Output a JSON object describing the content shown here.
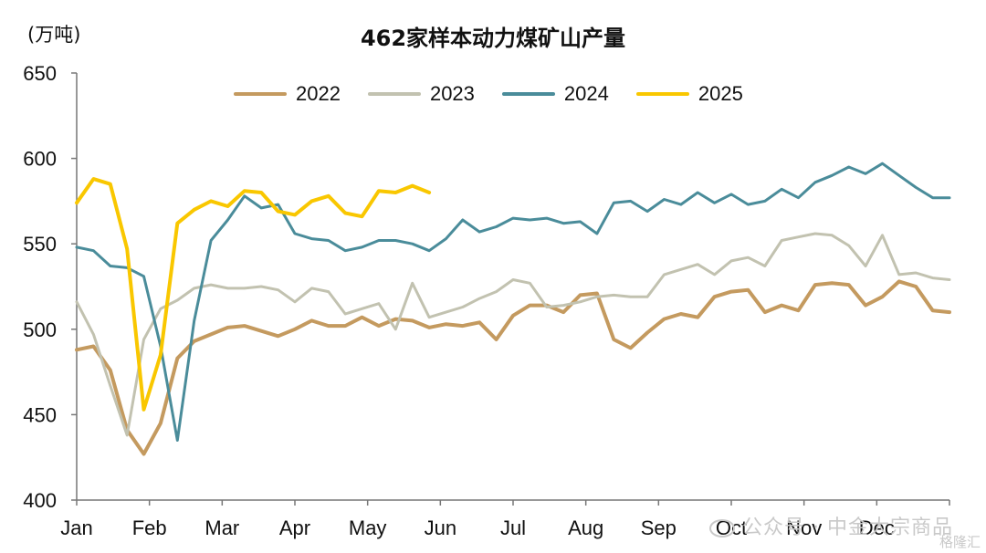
{
  "chart_data": {
    "type": "line",
    "title": "462家样本动力煤矿山产量",
    "unit_label": "(万吨)",
    "ylim": [
      400,
      650
    ],
    "yticks": [
      400,
      450,
      500,
      550,
      600,
      650
    ],
    "months": [
      "Jan",
      "Feb",
      "Mar",
      "Apr",
      "May",
      "Jun",
      "Jul",
      "Aug",
      "Sep",
      "Oct",
      "Nov",
      "Dec"
    ],
    "x_unit": "week",
    "xlim": [
      1,
      53
    ],
    "grid": false,
    "legend_position": "top",
    "series": [
      {
        "name": "2022",
        "color": "#c49a5f",
        "width": 4,
        "x": [
          1,
          2,
          3,
          4,
          5,
          6,
          7,
          8,
          9,
          10,
          11,
          12,
          13,
          14,
          15,
          16,
          17,
          18,
          19,
          20,
          21,
          22,
          23,
          24,
          25,
          26,
          27,
          28,
          29,
          30,
          31,
          32,
          33,
          34,
          35,
          36,
          37,
          38,
          39,
          40,
          41,
          42,
          43,
          44,
          45,
          46,
          47,
          48,
          49,
          50,
          51,
          52,
          53
        ],
        "values": [
          488,
          490,
          476,
          441,
          427,
          445,
          483,
          493,
          497,
          501,
          502,
          499,
          496,
          500,
          505,
          502,
          502,
          507,
          502,
          506,
          505,
          501,
          503,
          502,
          504,
          494,
          508,
          514,
          514,
          510,
          520,
          521,
          494,
          489,
          498,
          506,
          509,
          507,
          519,
          522,
          523,
          510,
          514,
          511,
          526,
          527,
          526,
          514,
          519,
          528,
          525,
          511,
          510
        ]
      },
      {
        "name": "2023",
        "color": "#c2c2b0",
        "width": 3,
        "x": [
          1,
          2,
          3,
          4,
          5,
          6,
          7,
          8,
          9,
          10,
          11,
          12,
          13,
          14,
          15,
          16,
          17,
          18,
          19,
          20,
          21,
          22,
          23,
          24,
          25,
          26,
          27,
          28,
          29,
          30,
          31,
          32,
          33,
          34,
          35,
          36,
          37,
          38,
          39,
          40,
          41,
          42,
          43,
          44,
          45,
          46,
          47,
          48,
          49,
          50,
          51,
          52,
          53
        ],
        "values": [
          516,
          497,
          467,
          438,
          494,
          512,
          517,
          524,
          526,
          524,
          524,
          525,
          523,
          516,
          524,
          522,
          509,
          512,
          515,
          500,
          527,
          507,
          510,
          513,
          518,
          522,
          529,
          527,
          513,
          514,
          516,
          519,
          520,
          519,
          519,
          532,
          535,
          538,
          532,
          540,
          542,
          537,
          552,
          554,
          556,
          555,
          549,
          537,
          555,
          532,
          533,
          530,
          529
        ]
      },
      {
        "name": "2024",
        "color": "#4a8c9a",
        "width": 3,
        "x": [
          1,
          2,
          3,
          4,
          5,
          6,
          7,
          8,
          9,
          10,
          11,
          12,
          13,
          14,
          15,
          16,
          17,
          18,
          19,
          20,
          21,
          22,
          23,
          24,
          25,
          26,
          27,
          28,
          29,
          30,
          31,
          32,
          33,
          34,
          35,
          36,
          37,
          38,
          39,
          40,
          41,
          42,
          43,
          44,
          45,
          46,
          47,
          48,
          49,
          50,
          51,
          52,
          53
        ],
        "values": [
          548,
          546,
          537,
          536,
          531,
          490,
          435,
          505,
          552,
          564,
          578,
          571,
          573,
          556,
          553,
          552,
          546,
          548,
          552,
          552,
          550,
          546,
          553,
          564,
          557,
          560,
          565,
          564,
          565,
          562,
          563,
          556,
          574,
          575,
          569,
          576,
          573,
          580,
          574,
          579,
          573,
          575,
          582,
          577,
          586,
          590,
          595,
          591,
          597,
          590,
          583,
          577,
          577
        ]
      },
      {
        "name": "2025",
        "color": "#f9c700",
        "width": 4,
        "x": [
          1,
          2,
          3,
          4,
          5,
          6,
          7,
          8,
          9,
          10,
          11,
          12,
          13,
          14,
          15,
          16,
          17,
          18,
          19,
          20,
          21,
          22
        ],
        "values": [
          574,
          588,
          585,
          547,
          453,
          485,
          562,
          570,
          575,
          572,
          581,
          580,
          569,
          567,
          575,
          578,
          568,
          566,
          581,
          580,
          584,
          580
        ]
      }
    ]
  },
  "watermark": {
    "text": "公众号 · 中金大宗商品",
    "logo_text": "格隆汇"
  }
}
